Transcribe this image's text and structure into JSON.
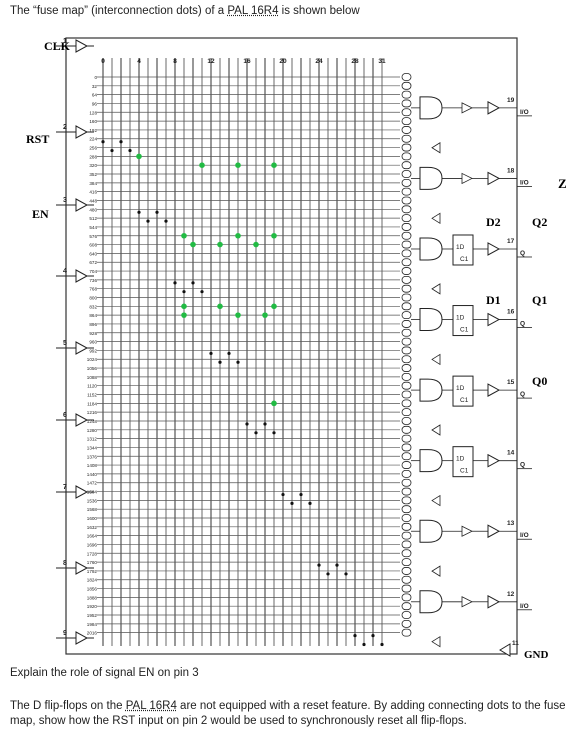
{
  "intro": {
    "before": "The “fuse map” (interconnection dots) of a ",
    "part": "PAL 16R4",
    "after": " is shown below"
  },
  "labels": {
    "clk": "CLK",
    "rst": "RST",
    "en": "EN",
    "z": "Z",
    "d2": "D2",
    "d1": "D1",
    "q2": "Q2",
    "q1": "Q1",
    "q0": "Q0",
    "gnd": "GND",
    "io": "I/O",
    "q": "Q",
    "dff_d": "1D",
    "dff_c": "C1",
    "pin_clk": "1",
    "pin_rst": "2",
    "pin_en": "3",
    "pin4": "4",
    "pin5": "5",
    "pin6": "6",
    "pin7": "7",
    "pin8": "8",
    "pin9": "9",
    "out19": "19",
    "out18": "18",
    "out17": "17",
    "out16": "16",
    "out15": "15",
    "out14": "14",
    "out13": "13",
    "out12": "12",
    "out11": "11"
  },
  "col_numbers": [
    "0",
    "4",
    "8",
    "12",
    "16",
    "20",
    "24",
    "28",
    "31"
  ],
  "row_numbers": [
    "0",
    "32",
    "64",
    "96",
    "128",
    "160",
    "192",
    "224",
    "256",
    "288",
    "320",
    "352",
    "384",
    "416",
    "448",
    "480",
    "512",
    "544",
    "576",
    "608",
    "640",
    "672",
    "704",
    "736",
    "768",
    "800",
    "832",
    "864",
    "896",
    "928",
    "960",
    "992",
    "1024",
    "1056",
    "1088",
    "1120",
    "1152",
    "1184",
    "1216",
    "1248",
    "1280",
    "1312",
    "1344",
    "1376",
    "1408",
    "1440",
    "1472",
    "1504",
    "1536",
    "1568",
    "1600",
    "1632",
    "1664",
    "1696",
    "1728",
    "1760",
    "1792",
    "1824",
    "1856",
    "1888",
    "1920",
    "1952",
    "1984",
    "2016"
  ],
  "colors": {
    "grid": "#444444",
    "green": "#22bb44",
    "dot": "#111111"
  },
  "green_dots": [
    {
      "col": 4,
      "row": 9
    },
    {
      "col": 11,
      "row": 10
    },
    {
      "col": 15,
      "row": 10
    },
    {
      "col": 19,
      "row": 10
    },
    {
      "col": 9,
      "row": 18
    },
    {
      "col": 10,
      "row": 19
    },
    {
      "col": 13,
      "row": 19
    },
    {
      "col": 15,
      "row": 18
    },
    {
      "col": 17,
      "row": 19
    },
    {
      "col": 19,
      "row": 18
    },
    {
      "col": 9,
      "row": 26
    },
    {
      "col": 9,
      "row": 27
    },
    {
      "col": 13,
      "row": 26
    },
    {
      "col": 15,
      "row": 27
    },
    {
      "col": 18,
      "row": 27
    },
    {
      "col": 19,
      "row": 26
    },
    {
      "col": 19,
      "row": 37
    }
  ],
  "black_dots": [
    {
      "col": 0,
      "row": 7
    },
    {
      "col": 1,
      "row": 8
    },
    {
      "col": 2,
      "row": 7
    },
    {
      "col": 3,
      "row": 8
    },
    {
      "col": 4,
      "row": 15
    },
    {
      "col": 5,
      "row": 16
    },
    {
      "col": 6,
      "row": 15
    },
    {
      "col": 7,
      "row": 16
    },
    {
      "col": 8,
      "row": 23
    },
    {
      "col": 9,
      "row": 24
    },
    {
      "col": 10,
      "row": 23
    },
    {
      "col": 11,
      "row": 24
    },
    {
      "col": 12,
      "row": 31
    },
    {
      "col": 13,
      "row": 32
    },
    {
      "col": 14,
      "row": 31
    },
    {
      "col": 15,
      "row": 32
    },
    {
      "col": 16,
      "row": 39
    },
    {
      "col": 17,
      "row": 40
    },
    {
      "col": 18,
      "row": 39
    },
    {
      "col": 19,
      "row": 40
    },
    {
      "col": 20,
      "row": 47
    },
    {
      "col": 21,
      "row": 48
    },
    {
      "col": 22,
      "row": 47
    },
    {
      "col": 23,
      "row": 48
    },
    {
      "col": 24,
      "row": 55
    },
    {
      "col": 25,
      "row": 56
    },
    {
      "col": 26,
      "row": 55
    },
    {
      "col": 27,
      "row": 56
    },
    {
      "col": 28,
      "row": 63
    },
    {
      "col": 29,
      "row": 64
    },
    {
      "col": 30,
      "row": 63
    },
    {
      "col": 31,
      "row": 64
    }
  ],
  "question1": "Explain the role of signal EN on pin 3",
  "question2": {
    "before": "The D flip-flops on the ",
    "part": "PAL 16R4",
    "after": " are not equipped with a reset feature. By adding connecting dots to the fuse map, show how the RST input on pin 2 would be used to synchronously reset all flip-flops."
  }
}
